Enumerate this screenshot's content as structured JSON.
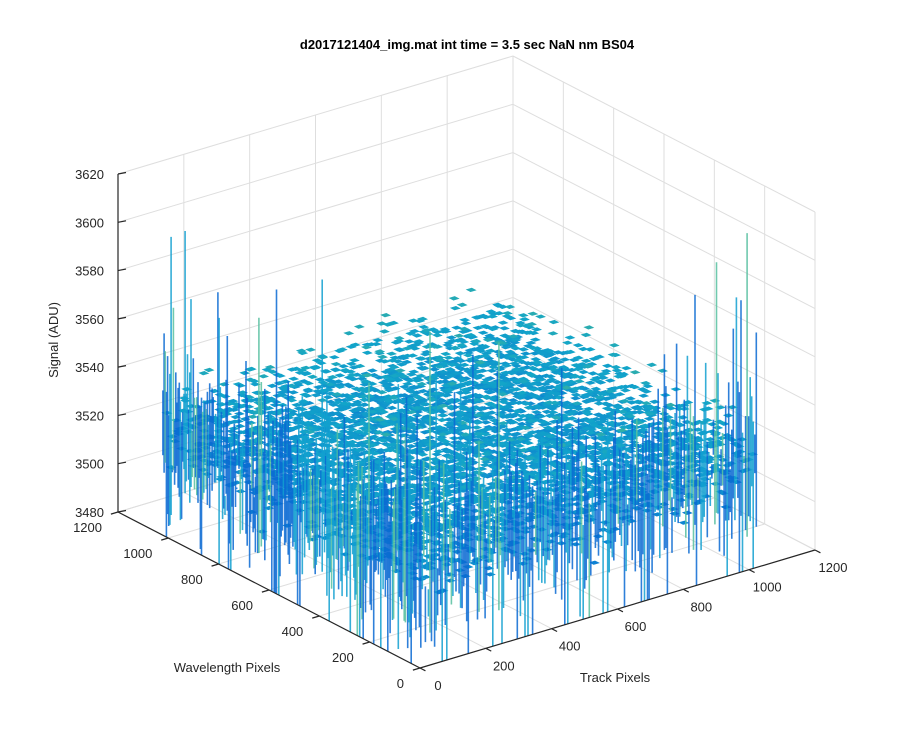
{
  "chart_data": {
    "type": "surface3d",
    "title": "d2017121404_img.mat int time = 3.5 sec  NaN nm BS04",
    "xlabel": "Track Pixels",
    "ylabel": "Wavelength Pixels",
    "zlabel": "Signal (ADU)",
    "xlim": [
      0,
      1200
    ],
    "ylim": [
      0,
      1200
    ],
    "zlim": [
      3480,
      3620
    ],
    "xticks": [
      "0",
      "200",
      "400",
      "600",
      "800",
      "1000",
      "1200"
    ],
    "yticks": [
      "0",
      "200",
      "400",
      "600",
      "800",
      "1000",
      "1200"
    ],
    "zticks": [
      "3480",
      "3500",
      "3520",
      "3540",
      "3560",
      "3580",
      "3600",
      "3620"
    ],
    "data_extent": {
      "x": [
        0,
        1024
      ],
      "y": [
        0,
        1024
      ]
    },
    "mean_signal": 3525,
    "noise_range": [
      3485,
      3590
    ],
    "colormap": "parula",
    "colors": {
      "low": "#0b6fd6",
      "mid": "#12a5c9",
      "high": "#8cc94a"
    },
    "grid": true
  }
}
